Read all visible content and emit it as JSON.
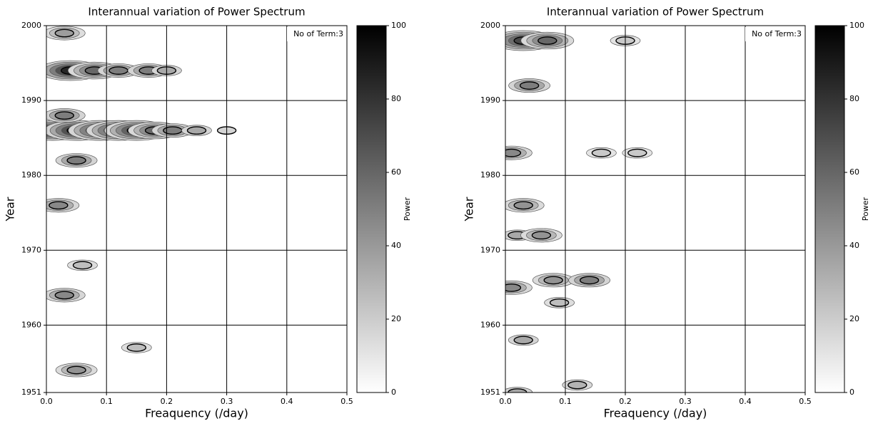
{
  "chart_data": [
    {
      "type": "contour",
      "title": "Interannual variation of Power Spectrum",
      "xlabel": "Freaquency (/day)",
      "ylabel": "Year",
      "annotation": "No of Term:3",
      "colorbar_label": "Power",
      "colormap": "gray_r",
      "xlim": [
        0,
        0.5
      ],
      "xticks": [
        {
          "value": 0,
          "label": "0.0"
        },
        0.1,
        0.2,
        0.3,
        0.4,
        0.5
      ],
      "ylim": [
        1951,
        2000
      ],
      "yticks": [
        1951,
        1960,
        1970,
        1980,
        1990,
        2000
      ],
      "clim": [
        0,
        100
      ],
      "cticks": [
        0,
        20,
        40,
        60,
        80,
        100
      ],
      "grid": true,
      "peaks": {
        "x": [
          0.01,
          0.05,
          0.09,
          0.12,
          0.15,
          0.18,
          0.21,
          0.25,
          0.3,
          0.04,
          0.08,
          0.12,
          0.17,
          0.2,
          0.03,
          0.05,
          0.02,
          0.03,
          0.05,
          0.03,
          0.06,
          0.15
        ],
        "y": [
          1986,
          1986,
          1986,
          1986,
          1986,
          1986,
          1986,
          1986,
          1986,
          1994,
          1994,
          1994,
          1994,
          1994,
          1988,
          1982,
          1976,
          1964,
          1954,
          1999,
          1968,
          1957
        ],
        "values": [
          100,
          100,
          95,
          95,
          90,
          70,
          60,
          40,
          20,
          100,
          70,
          60,
          60,
          40,
          60,
          60,
          55,
          55,
          50,
          45,
          30,
          30
        ]
      }
    },
    {
      "type": "contour",
      "title": "Interannual variation of Power Spectrum",
      "xlabel": "Freaquency (/day)",
      "ylabel": "Year",
      "annotation": "No of Term:3",
      "colorbar_label": "Power",
      "colormap": "gray_r",
      "xlim": [
        0,
        0.5
      ],
      "xticks": [
        {
          "value": 0,
          "label": "0.0"
        },
        0.1,
        0.2,
        0.3,
        0.4,
        0.5
      ],
      "ylim": [
        1951,
        2000
      ],
      "yticks": [
        1951,
        1960,
        1970,
        1980,
        1990,
        2000
      ],
      "clim": [
        0,
        100
      ],
      "cticks": [
        0,
        20,
        40,
        60,
        80,
        100
      ],
      "grid": true,
      "peaks": {
        "x": [
          0.03,
          0.07,
          0.04,
          0.01,
          0.03,
          0.02,
          0.06,
          0.01,
          0.08,
          0.14,
          0.03,
          0.02,
          0.12,
          0.09,
          0.2,
          0.16,
          0.22
        ],
        "y": [
          1998,
          1998,
          1992,
          1983,
          1976,
          1972,
          1972,
          1965,
          1966,
          1966,
          1958,
          1951,
          1952,
          1963,
          1998,
          1983,
          1983
        ],
        "values": [
          85,
          70,
          60,
          55,
          50,
          40,
          50,
          55,
          50,
          60,
          40,
          40,
          35,
          30,
          25,
          25,
          25
        ]
      }
    }
  ]
}
